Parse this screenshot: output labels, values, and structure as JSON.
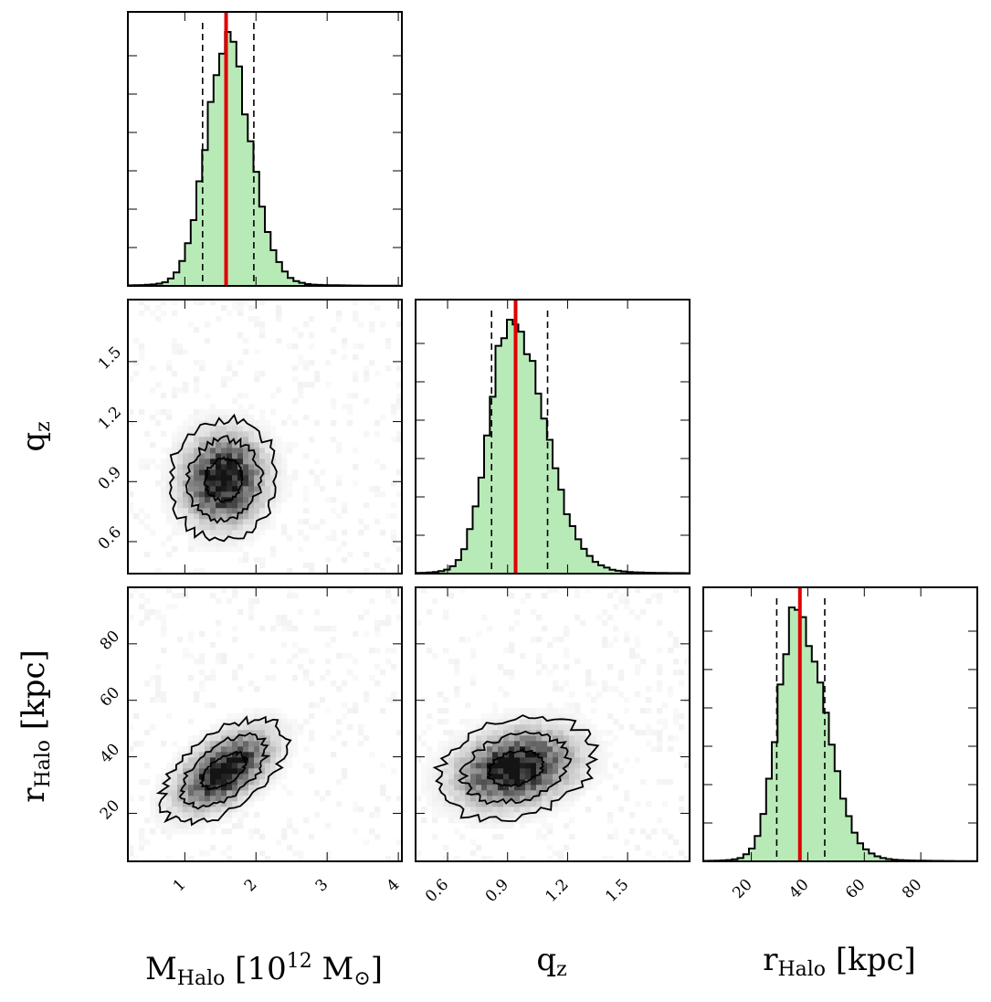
{
  "chart_data": {
    "type": "corner",
    "parameters": [
      {
        "key": "M",
        "label_main": "M",
        "label_sub": "Halo",
        "label_unit_pre": " [10",
        "label_sup": "12",
        "label_unit_post": " M",
        "label_sym": "⊙",
        "label_close": "]",
        "range": [
          0.2,
          4.05
        ],
        "ticks": [
          1,
          2,
          3,
          4
        ],
        "tick_labels": [
          "1",
          "2",
          "3",
          "4"
        ]
      },
      {
        "key": "q",
        "label_main": "q",
        "label_sub": "z",
        "range": [
          0.44,
          1.81
        ],
        "ticks": [
          0.6,
          0.9,
          1.2,
          1.5
        ],
        "tick_labels": [
          "0.6",
          "0.9",
          "1.2",
          "1.5"
        ]
      },
      {
        "key": "r",
        "label_main": "r",
        "label_sub": "Halo",
        "label_unit": " [kpc]",
        "range": [
          3,
          100
        ],
        "ticks": [
          20,
          40,
          60,
          80
        ],
        "tick_labels": [
          "20",
          "40",
          "60",
          "80"
        ]
      }
    ],
    "histograms": [
      {
        "param": "M",
        "best_fit": 1.58,
        "quantiles": [
          1.25,
          1.97
        ],
        "peak": 1.58,
        "sigma": 0.3,
        "skew": 0.12
      },
      {
        "param": "q",
        "best_fit": 0.94,
        "quantiles": [
          0.82,
          1.1
        ],
        "peak": 0.91,
        "sigma": 0.125,
        "skew": 0.35
      },
      {
        "param": "r",
        "best_fit": 37.2,
        "quantiles": [
          29.0,
          46.0
        ],
        "peak": 36.0,
        "sigma": 7.5,
        "skew": 0.3
      }
    ],
    "density_2d": [
      {
        "x": "M",
        "y": "q",
        "center": [
          1.55,
          0.91
        ],
        "sigma": [
          0.33,
          0.13
        ],
        "rho": 0.05
      },
      {
        "x": "M",
        "y": "r",
        "center": [
          1.55,
          35.0
        ],
        "sigma": [
          0.38,
          8.0
        ],
        "rho": 0.55
      },
      {
        "x": "q",
        "y": "r",
        "center": [
          0.94,
          36.0
        ],
        "sigma": [
          0.17,
          7.8
        ],
        "rho": 0.25
      }
    ],
    "contour_levels": [
      "39%",
      "86%",
      "99%"
    ],
    "colors": {
      "best_fit": "#e00000",
      "hist_fill": "#b8eab8",
      "hist_edge": "#000000"
    }
  }
}
